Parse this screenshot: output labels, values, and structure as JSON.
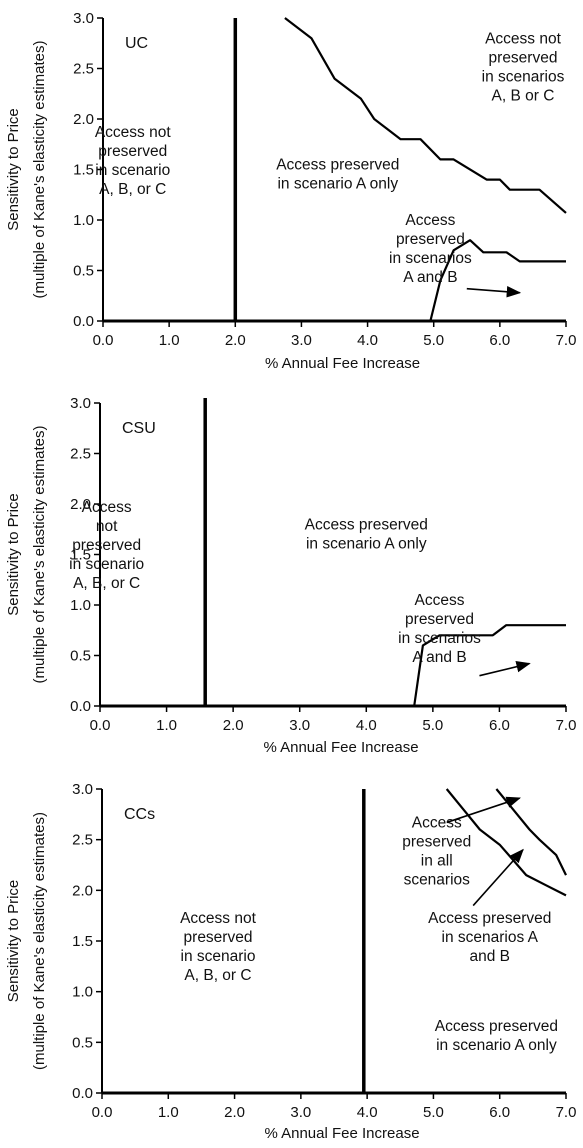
{
  "chart_data": [
    {
      "type": "line",
      "name": "UC",
      "xlabel": "% Annual Fee Increase",
      "ylabel": [
        "Sensitivity to Price",
        "(multiple of Kane's elasticity estimates)"
      ],
      "xlim": [
        0,
        7
      ],
      "ylim": [
        0,
        3
      ],
      "x_ticks": [
        "0.0",
        "1.0",
        "2.0",
        "3.0",
        "4.0",
        "5.0",
        "6.0",
        "7.0"
      ],
      "y_ticks": [
        "0.0",
        "0.5",
        "1.0",
        "1.5",
        "2.0",
        "2.5",
        "3.0"
      ],
      "grid": false,
      "boundaries": [
        {
          "x": [
            2.0,
            2.0
          ],
          "y": [
            0,
            3.0
          ]
        },
        {
          "x": [
            2.75,
            3.15,
            3.5,
            3.9,
            4.1,
            4.5,
            4.8,
            5.1,
            5.3,
            5.8,
            6.0,
            6.15,
            6.6,
            7.0
          ],
          "y": [
            3.0,
            2.8,
            2.4,
            2.2,
            2.0,
            1.8,
            1.8,
            1.6,
            1.6,
            1.4,
            1.4,
            1.3,
            1.3,
            1.07
          ]
        },
        {
          "x": [
            4.95,
            5.1,
            5.3,
            5.55,
            5.75,
            6.1,
            6.3,
            7.0
          ],
          "y": [
            0.0,
            0.4,
            0.7,
            0.8,
            0.68,
            0.68,
            0.59,
            0.59
          ]
        }
      ],
      "regions": [
        {
          "lines": [
            "Access not",
            "preserved",
            "in scenario",
            "A, B, or C"
          ],
          "x": 0.45,
          "y": 1.82
        },
        {
          "lines": [
            "Access preserved",
            "in scenario A only"
          ],
          "x": 3.55,
          "y": 1.5
        },
        {
          "lines": [
            "Access not",
            "preserved",
            "in scenarios",
            "A, B or C"
          ],
          "x": 6.35,
          "y": 2.75
        },
        {
          "lines": [
            "Access",
            "preserved",
            "in scenarios",
            "A and B"
          ],
          "x": 4.95,
          "y": 0.95
        }
      ],
      "arrows": [
        {
          "from": [
            5.5,
            0.32
          ],
          "to": [
            6.3,
            0.28
          ]
        }
      ]
    },
    {
      "type": "line",
      "name": "CSU",
      "xlabel": "% Annual Fee Increase",
      "ylabel": [
        "Sensitivity to Price",
        "(multiple of Kane's elasticity estimates)"
      ],
      "xlim": [
        0,
        7
      ],
      "ylim": [
        0,
        3
      ],
      "x_ticks": [
        "0.0",
        "1.0",
        "2.0",
        "3.0",
        "4.0",
        "5.0",
        "6.0",
        "7.0"
      ],
      "y_ticks": [
        "0.0",
        "0.5",
        "1.0",
        "1.5",
        "2.0",
        "2.5",
        "3.0"
      ],
      "grid": false,
      "boundaries": [
        {
          "x": [
            1.58,
            1.58
          ],
          "y": [
            0,
            3.05
          ]
        },
        {
          "x": [
            4.72,
            4.85,
            5.1,
            5.9,
            6.1,
            7.0
          ],
          "y": [
            0.0,
            0.6,
            0.7,
            0.7,
            0.8,
            0.8
          ]
        }
      ],
      "regions": [
        {
          "lines": [
            "Access",
            "not",
            "preserved",
            "in scenario",
            "A, B, or C"
          ],
          "x": 0.1,
          "y": 1.92
        },
        {
          "lines": [
            "Access preserved",
            "in scenario A only"
          ],
          "x": 4.0,
          "y": 1.75
        },
        {
          "lines": [
            "Access",
            "preserved",
            "in scenarios",
            "A and B"
          ],
          "x": 5.1,
          "y": 1.0
        }
      ],
      "arrows": [
        {
          "from": [
            5.7,
            0.3
          ],
          "to": [
            6.45,
            0.42
          ]
        }
      ]
    },
    {
      "type": "line",
      "name": "CCs",
      "xlabel": "% Annual Fee Increase",
      "ylabel": [
        "Sensitivity to Price",
        "(multiple of Kane's elasticity estimates)"
      ],
      "xlim": [
        0,
        7
      ],
      "ylim": [
        0,
        3
      ],
      "x_ticks": [
        "0.0",
        "1.0",
        "2.0",
        "3.0",
        "4.0",
        "5.0",
        "6.0",
        "7.0"
      ],
      "y_ticks": [
        "0.0",
        "0.5",
        "1.0",
        "1.5",
        "2.0",
        "2.5",
        "3.0"
      ],
      "grid": false,
      "boundaries": [
        {
          "x": [
            3.95,
            3.95
          ],
          "y": [
            0,
            3.0
          ]
        },
        {
          "x": [
            5.2,
            5.45,
            5.7,
            6.0,
            6.2,
            6.4,
            6.7,
            7.0
          ],
          "y": [
            3.0,
            2.8,
            2.6,
            2.45,
            2.3,
            2.15,
            2.05,
            1.95
          ]
        },
        {
          "x": [
            5.95,
            6.2,
            6.45,
            6.6,
            6.85,
            7.0
          ],
          "y": [
            3.0,
            2.8,
            2.6,
            2.5,
            2.35,
            2.15
          ]
        }
      ],
      "regions": [
        {
          "lines": [
            "Access not",
            "preserved",
            "in scenario",
            "A, B, or C"
          ],
          "x": 1.75,
          "y": 1.68
        },
        {
          "lines": [
            "Access",
            "preserved",
            "in all",
            "scenarios"
          ],
          "x": 5.05,
          "y": 2.62
        },
        {
          "lines": [
            "Access preserved",
            "in scenarios A",
            "and B"
          ],
          "x": 5.85,
          "y": 1.68
        },
        {
          "lines": [
            "Access preserved",
            "in scenario A only"
          ],
          "x": 5.95,
          "y": 0.61
        }
      ],
      "arrows": [
        {
          "from": [
            5.2,
            2.67
          ],
          "to": [
            6.3,
            2.91
          ]
        },
        {
          "from": [
            5.6,
            1.85
          ],
          "to": [
            6.35,
            2.4
          ]
        }
      ]
    }
  ]
}
